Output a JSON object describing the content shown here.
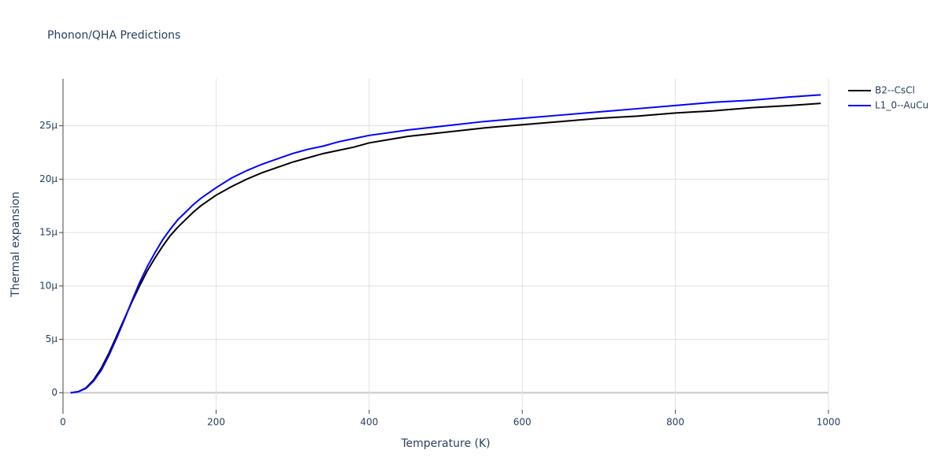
{
  "chart_data": {
    "type": "line",
    "title": "Phonon/QHA Predictions",
    "x_label": "Temperature (K)",
    "y_label": "Thermal expansion",
    "x": [
      10,
      20,
      30,
      40,
      50,
      60,
      70,
      80,
      90,
      100,
      110,
      120,
      130,
      140,
      150,
      160,
      170,
      180,
      190,
      200,
      220,
      240,
      260,
      280,
      300,
      320,
      340,
      360,
      380,
      400,
      450,
      500,
      550,
      600,
      650,
      700,
      750,
      800,
      850,
      900,
      950,
      990
    ],
    "series": [
      {
        "name": "B2--CsCl",
        "color": "#000000",
        "values": [
          0,
          1e-07,
          4.5e-07,
          1.2e-06,
          2.3e-06,
          3.7e-06,
          5.3e-06,
          6.9e-06,
          8.5e-06,
          1e-05,
          1.14e-05,
          1.26e-05,
          1.37e-05,
          1.47e-05,
          1.55e-05,
          1.62e-05,
          1.69e-05,
          1.75e-05,
          1.8e-05,
          1.85e-05,
          1.93e-05,
          2e-05,
          2.06e-05,
          2.11e-05,
          2.16e-05,
          2.2e-05,
          2.24e-05,
          2.27e-05,
          2.3e-05,
          2.34e-05,
          2.4e-05,
          2.44e-05,
          2.48e-05,
          2.51e-05,
          2.54e-05,
          2.57e-05,
          2.59e-05,
          2.62e-05,
          2.64e-05,
          2.67e-05,
          2.69e-05,
          2.71e-05
        ]
      },
      {
        "name": "L1_0--AuCu",
        "color": "#0000ff",
        "values": [
          0,
          1e-07,
          4e-07,
          1.1e-06,
          2.1e-06,
          3.5e-06,
          5.1e-06,
          6.8e-06,
          8.6e-06,
          1.03e-05,
          1.18e-05,
          1.31e-05,
          1.43e-05,
          1.53e-05,
          1.62e-05,
          1.69e-05,
          1.76e-05,
          1.82e-05,
          1.87e-05,
          1.92e-05,
          2.01e-05,
          2.08e-05,
          2.14e-05,
          2.19e-05,
          2.24e-05,
          2.28e-05,
          2.31e-05,
          2.35e-05,
          2.38e-05,
          2.41e-05,
          2.46e-05,
          2.5e-05,
          2.54e-05,
          2.57e-05,
          2.6e-05,
          2.63e-05,
          2.66e-05,
          2.69e-05,
          2.72e-05,
          2.74e-05,
          2.77e-05,
          2.79e-05
        ]
      }
    ],
    "xlim": [
      0,
      1000
    ],
    "xticks": [
      0,
      200,
      400,
      600,
      800,
      1000
    ],
    "ylim": [
      -1.6e-06,
      2.94e-05
    ],
    "yticks": [
      0,
      {
        "value": 5e-06,
        "label": "5μ"
      },
      {
        "value": 1e-05,
        "label": "10μ"
      },
      {
        "value": 1.5e-05,
        "label": "15μ"
      },
      {
        "value": 2e-05,
        "label": "20μ"
      },
      {
        "value": 2.5e-05,
        "label": "25μ"
      }
    ],
    "grid": true,
    "legend": "top-right"
  }
}
